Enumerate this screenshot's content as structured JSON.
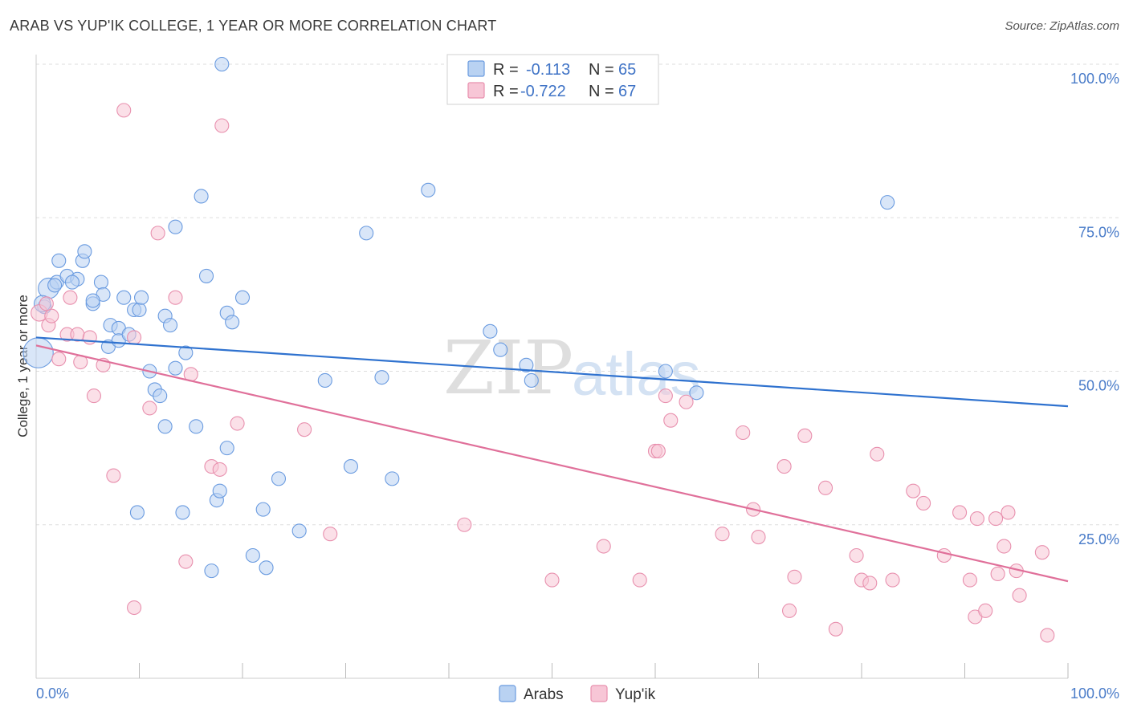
{
  "title": "ARAB VS YUP'IK COLLEGE, 1 YEAR OR MORE CORRELATION CHART",
  "source": "Source: ZipAtlas.com",
  "watermark": {
    "zip": "ZIP",
    "atlas": "atlas"
  },
  "colors": {
    "arab_fill": "#b9d2f2",
    "arab_stroke": "#6a9be0",
    "arab_line": "#2f72cf",
    "yupik_fill": "#f7c6d6",
    "yupik_stroke": "#e890ae",
    "yupik_line": "#e0709a"
  },
  "legend": {
    "rows": [
      {
        "r_label": "R =",
        "r_value": "-0.113",
        "n_label": "N =",
        "n_value": "65"
      },
      {
        "r_label": "R =",
        "r_value": "-0.722",
        "n_label": "N =",
        "n_value": "67"
      }
    ]
  },
  "chart_data": {
    "type": "scatter",
    "xlabel": "",
    "ylabel": "College, 1 year or more",
    "xlim": [
      0,
      100
    ],
    "ylim": [
      0,
      100
    ],
    "x_tick_labels": [
      "0.0%",
      "100.0%"
    ],
    "y_tick_labels": [
      "25.0%",
      "50.0%",
      "75.0%",
      "100.0%"
    ],
    "y_ticks": [
      25,
      50,
      75,
      100
    ],
    "x_minor_ticks": [
      10,
      20,
      30,
      40,
      50,
      60,
      70,
      80,
      90,
      100
    ],
    "series": [
      {
        "name": "Arabs",
        "trend": {
          "x0": 0,
          "y0": 55.5,
          "x1": 100,
          "y1": 44.3
        },
        "points": [
          [
            0.2,
            53,
            2.2
          ],
          [
            1.2,
            63.5,
            1.5
          ],
          [
            0.8,
            60.5,
            1
          ],
          [
            2,
            64.5,
            1
          ],
          [
            2.2,
            68,
            1
          ],
          [
            3,
            65.5,
            1
          ],
          [
            4,
            65,
            1
          ],
          [
            4.5,
            68,
            1
          ],
          [
            4.7,
            69.5,
            1
          ],
          [
            5.5,
            61,
            1
          ],
          [
            6.3,
            64.5,
            1
          ],
          [
            6.5,
            62.5,
            1
          ],
          [
            7,
            54,
            1
          ],
          [
            7.2,
            57.5,
            1
          ],
          [
            8,
            57,
            1
          ],
          [
            8,
            55,
            1
          ],
          [
            8.5,
            62,
            1
          ],
          [
            9,
            56,
            1
          ],
          [
            9.5,
            60,
            1
          ],
          [
            10,
            60,
            1
          ],
          [
            10.2,
            62,
            1
          ],
          [
            11,
            50,
            1
          ],
          [
            11.5,
            47,
            1
          ],
          [
            12,
            46,
            1
          ],
          [
            12.5,
            41,
            1
          ],
          [
            12.5,
            59,
            1
          ],
          [
            13,
            57.5,
            1
          ],
          [
            13.5,
            73.5,
            1
          ],
          [
            13.5,
            50.5,
            1
          ],
          [
            14.5,
            53,
            1
          ],
          [
            15.5,
            41,
            1
          ],
          [
            16,
            78.5,
            1
          ],
          [
            16.5,
            65.5,
            1
          ],
          [
            17,
            17.5,
            1
          ],
          [
            17.5,
            29,
            1
          ],
          [
            17.8,
            30.5,
            1
          ],
          [
            18.5,
            59.5,
            1
          ],
          [
            18.5,
            37.5,
            1
          ],
          [
            19,
            58,
            1
          ],
          [
            20,
            62,
            1
          ],
          [
            21,
            20,
            1
          ],
          [
            22,
            27.5,
            1
          ],
          [
            22.3,
            18,
            1
          ],
          [
            23.5,
            32.5,
            1
          ],
          [
            25.5,
            24,
            1
          ],
          [
            28,
            48.5,
            1
          ],
          [
            30.5,
            34.5,
            1
          ],
          [
            32,
            72.5,
            1
          ],
          [
            33.5,
            49,
            1
          ],
          [
            34.5,
            32.5,
            1
          ],
          [
            38,
            79.5,
            1
          ],
          [
            44,
            56.5,
            1
          ],
          [
            45,
            53.5,
            1
          ],
          [
            47.5,
            51,
            1
          ],
          [
            48,
            48.5,
            1
          ],
          [
            61,
            50,
            1
          ],
          [
            64,
            46.5,
            1
          ],
          [
            82.5,
            77.5,
            1
          ],
          [
            18,
            100,
            1
          ],
          [
            5.5,
            61.5,
            1
          ],
          [
            9.8,
            27,
            1
          ],
          [
            14.2,
            27,
            1
          ],
          [
            3.5,
            64.5,
            1
          ],
          [
            1.8,
            64,
            1
          ],
          [
            0.6,
            61,
            1.2
          ]
        ]
      },
      {
        "name": "Yup'ik",
        "trend": {
          "x0": 0,
          "y0": 54.2,
          "x1": 100,
          "y1": 15.8
        },
        "points": [
          [
            0.3,
            59.5,
            1.2
          ],
          [
            1.2,
            57.5,
            1
          ],
          [
            1.5,
            59,
            1
          ],
          [
            2.2,
            52,
            1
          ],
          [
            3,
            56,
            1
          ],
          [
            3.3,
            62,
            1
          ],
          [
            4,
            56,
            1
          ],
          [
            4.3,
            51.5,
            1
          ],
          [
            5.2,
            55.5,
            1
          ],
          [
            5.6,
            46,
            1
          ],
          [
            6.5,
            51,
            1
          ],
          [
            7.5,
            33,
            1
          ],
          [
            8.5,
            92.5,
            1
          ],
          [
            9.5,
            11.5,
            1
          ],
          [
            9.5,
            55.5,
            1
          ],
          [
            11,
            44,
            1
          ],
          [
            11.8,
            72.5,
            1
          ],
          [
            13.5,
            62,
            1
          ],
          [
            14.5,
            19,
            1
          ],
          [
            15,
            49.5,
            1
          ],
          [
            17,
            34.5,
            1
          ],
          [
            17.8,
            34,
            1
          ],
          [
            18,
            90,
            1
          ],
          [
            19.5,
            41.5,
            1
          ],
          [
            26,
            40.5,
            1
          ],
          [
            28.5,
            23.5,
            1
          ],
          [
            41.5,
            25,
            1
          ],
          [
            50,
            16,
            1
          ],
          [
            55,
            21.5,
            1
          ],
          [
            58.5,
            16,
            1
          ],
          [
            60,
            37,
            1
          ],
          [
            60.3,
            37,
            1
          ],
          [
            61,
            46,
            1
          ],
          [
            61.5,
            42,
            1
          ],
          [
            63,
            45,
            1
          ],
          [
            66.5,
            23.5,
            1
          ],
          [
            68.5,
            40,
            1
          ],
          [
            69.5,
            27.5,
            1
          ],
          [
            70,
            23,
            1
          ],
          [
            72.5,
            34.5,
            1
          ],
          [
            73,
            11,
            1
          ],
          [
            73.5,
            16.5,
            1
          ],
          [
            74.5,
            39.5,
            1
          ],
          [
            76.5,
            31,
            1
          ],
          [
            77.5,
            8,
            1
          ],
          [
            79.5,
            20,
            1
          ],
          [
            80,
            16,
            1
          ],
          [
            80.8,
            15.5,
            1
          ],
          [
            81.5,
            36.5,
            1
          ],
          [
            83,
            16,
            1
          ],
          [
            85,
            30.5,
            1
          ],
          [
            86,
            28.5,
            1
          ],
          [
            88,
            20,
            1
          ],
          [
            89.5,
            27,
            1
          ],
          [
            90.5,
            16,
            1
          ],
          [
            91,
            10,
            1
          ],
          [
            91.2,
            26,
            1
          ],
          [
            92,
            11,
            1
          ],
          [
            93,
            26,
            1
          ],
          [
            93.2,
            17,
            1
          ],
          [
            93.8,
            21.5,
            1
          ],
          [
            94.2,
            27,
            1
          ],
          [
            95,
            17.5,
            1
          ],
          [
            95.3,
            13.5,
            1
          ],
          [
            97.5,
            20.5,
            1
          ],
          [
            98,
            7,
            1
          ],
          [
            1,
            61,
            1
          ]
        ]
      }
    ]
  },
  "bottom_legend": [
    {
      "label": "Arabs"
    },
    {
      "label": "Yup'ik"
    }
  ]
}
